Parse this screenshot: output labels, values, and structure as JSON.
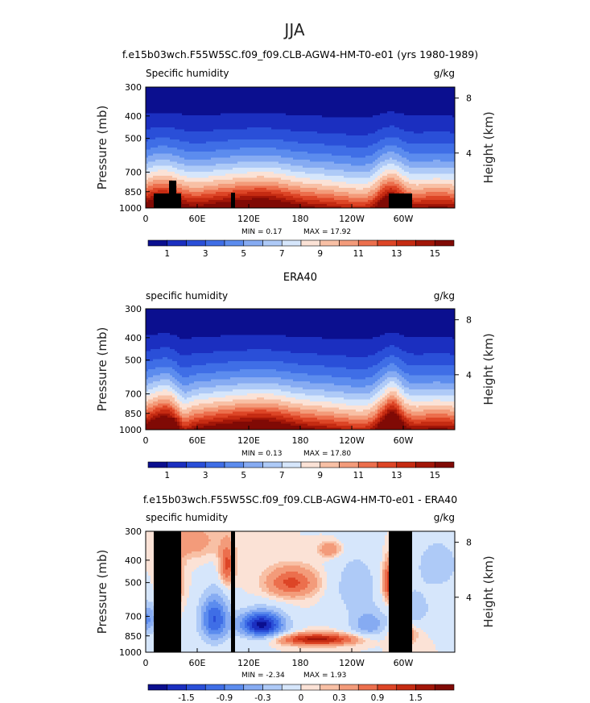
{
  "figure_title": "JJA",
  "chart_data": [
    {
      "type": "heatmap",
      "title": "f.e15b03wch.F55W5SC.f09_f09.CLB-AGW4-HM-T0-e01 (yrs 1980-1989)",
      "left_label": "Specific humidity",
      "units": "g/kg",
      "ylabel": "Pressure (mb)",
      "ylabel_right": "Height (km)",
      "x_ticks": [
        "0",
        "60E",
        "120E",
        "180",
        "120W",
        "60W"
      ],
      "y_ticks": [
        "300",
        "400",
        "500",
        "700",
        "850",
        "1000"
      ],
      "y_ticks_right": [
        "8",
        "4"
      ],
      "min_text": "MIN =    0.17",
      "max_text": "MAX =   17.92",
      "min": 0.17,
      "max": 17.92,
      "colorbar_labels": [
        "1",
        "3",
        "5",
        "7",
        "9",
        "11",
        "13",
        "15"
      ],
      "colorbar_levels": 16,
      "topography": true
    },
    {
      "type": "heatmap",
      "title": "ERA40",
      "left_label": "specific humidity",
      "units": "g/kg",
      "ylabel": "Pressure (mb)",
      "ylabel_right": "Height (km)",
      "x_ticks": [
        "0",
        "60E",
        "120E",
        "180",
        "120W",
        "60W"
      ],
      "y_ticks": [
        "300",
        "400",
        "500",
        "700",
        "850",
        "1000"
      ],
      "y_ticks_right": [
        "8",
        "4"
      ],
      "min_text": "MIN =    0.13",
      "max_text": "MAX =   17.80",
      "min": 0.13,
      "max": 17.8,
      "colorbar_labels": [
        "1",
        "3",
        "5",
        "7",
        "9",
        "11",
        "13",
        "15"
      ],
      "colorbar_levels": 16,
      "topography": false
    },
    {
      "type": "heatmap",
      "title": "f.e15b03wch.F55W5SC.f09_f09.CLB-AGW4-HM-T0-e01 - ERA40",
      "left_label": "specific humidity",
      "units": "g/kg",
      "ylabel": "Pressure (mb)",
      "ylabel_right": "Height (km)",
      "x_ticks": [
        "0",
        "60E",
        "120E",
        "180",
        "120W",
        "60W"
      ],
      "y_ticks": [
        "300",
        "400",
        "500",
        "700",
        "850",
        "1000"
      ],
      "y_ticks_right": [
        "8",
        "4"
      ],
      "min_text": "MIN =   -2.34",
      "max_text": "MAX =    1.93",
      "min": -2.34,
      "max": 1.93,
      "colorbar_labels": [
        "-1.5",
        "-0.9",
        "-0.3",
        "0",
        "0.3",
        "0.9",
        "1.5"
      ],
      "colorbar_levels": 16,
      "topography": true
    }
  ],
  "colors": {
    "seq": [
      "#0b0f8f",
      "#1b2fc0",
      "#2a4fd8",
      "#3f6ee6",
      "#5c8cee",
      "#86abf2",
      "#aecaf7",
      "#d6e6fb",
      "#fbe2d6",
      "#f8c0a5",
      "#f39b7a",
      "#ec6f4d",
      "#dd4526",
      "#c52b12",
      "#a21608",
      "#800a05"
    ],
    "div": [
      "#0b0f8f",
      "#1b2fc0",
      "#2a4fd8",
      "#3f6ee6",
      "#5c8cee",
      "#86abf2",
      "#aecaf7",
      "#d6e6fb",
      "#fbe2d6",
      "#f8c0a5",
      "#f39b7a",
      "#ec6f4d",
      "#dd4526",
      "#c52b12",
      "#a21608",
      "#800a05"
    ]
  }
}
